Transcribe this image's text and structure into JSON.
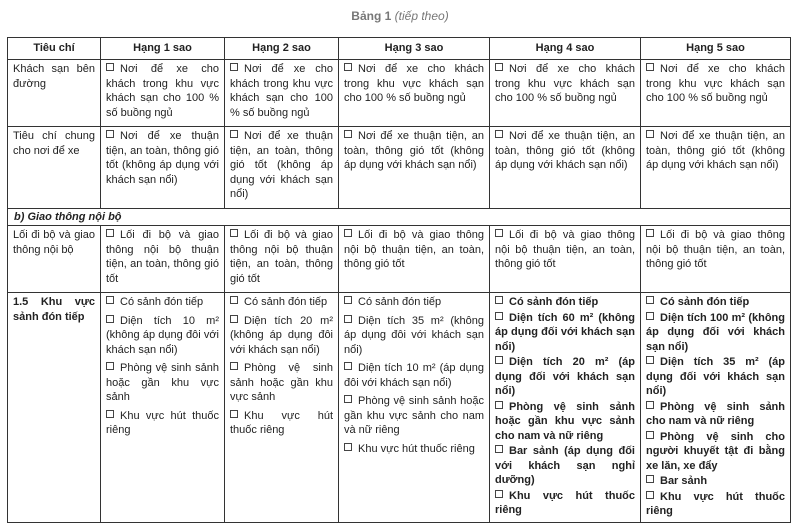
{
  "caption": {
    "title": "Bảng 1",
    "note": "(tiếp theo)"
  },
  "headers": [
    "Tiêu chí",
    "Hạng 1 sao",
    "Hạng 2 sao",
    "Hạng 3 sao",
    "Hạng 4 sao",
    "Hạng 5 sao"
  ],
  "rows": [
    {
      "criterion": "Khách sạn bên đường",
      "cells": [
        [
          "Nơi để xe cho khách trong khu vực khách sạn cho 100 % số buồng ngủ"
        ],
        [
          "Nơi để xe cho khách trong khu vực khách sạn cho 100 % số buồng ngủ"
        ],
        [
          "Nơi để xe cho khách trong khu vực khách sạn cho 100 % số buồng ngủ"
        ],
        [
          "Nơi để xe cho khách trong khu vực khách sạn cho 100 % số buồng ngủ"
        ],
        [
          "Nơi để xe cho khách trong khu vực khách sạn cho 100 % số buồng ngủ"
        ]
      ]
    },
    {
      "criterion": "Tiêu chí chung cho nơi để xe",
      "cells": [
        [
          "Nơi để xe thuận tiện, an toàn, thông gió tốt (không áp dụng với khách sạn nổi)"
        ],
        [
          "Nơi để xe thuận tiện, an toàn, thông gió tốt (không áp dụng với khách sạn nổi)"
        ],
        [
          "Nơi để xe thuận tiện, an toàn, thông gió tốt (không áp dụng với khách sạn nổi)"
        ],
        [
          "Nơi để xe thuận tiện, an toàn, thông gió tốt (không áp dụng với khách sạn nổi)"
        ],
        [
          "Nơi để xe thuận tiện, an toàn, thông gió tốt (không áp dụng với khách sạn nổi)"
        ]
      ]
    }
  ],
  "section": "b) Giao thông nội bộ",
  "rows2": [
    {
      "criterion": "Lối đi bộ và giao thông nội bộ",
      "cells": [
        [
          "Lối đi bộ và giao thông nội bộ thuận tiện, an toàn, thông gió tốt"
        ],
        [
          "Lối đi bộ và giao thông nội bộ thuận tiện, an toàn, thông gió tốt"
        ],
        [
          "Lối đi bộ và giao thông nội bộ thuận tiện, an toàn, thông gió tốt"
        ],
        [
          "Lối đi bộ và giao thông nội bộ thuận tiện, an toàn, thông gió tốt"
        ],
        [
          "Lối đi bộ và giao thông nội bộ thuận tiện, an toàn, thông gió tốt"
        ]
      ]
    },
    {
      "criterion": "1.5 Khu vực sảnh đón tiếp",
      "cells": [
        [
          "Có sảnh đón tiếp",
          "Diện tích 10 m² (không áp dụng đôi với khách sạn nổi)",
          "Phòng vệ sinh sảnh hoặc gần khu vực sảnh",
          "Khu vực hút thuốc riêng"
        ],
        [
          "Có sảnh đón tiếp",
          "Diện tích 20 m² (không áp dụng đôi với khách sạn nổi)",
          "Phòng vệ sinh sảnh hoặc gần khu vực sảnh",
          "Khu vực hút thuốc riêng"
        ],
        [
          "Có sảnh đón tiếp",
          "Diện tích 35 m² (không áp dụng đôi với khách sạn nổi)",
          "Diện tích 10 m² (áp dụng đôi với khách sạn nổi)",
          "Phòng vệ sinh sảnh hoặc gần khu vực sảnh cho nam và nữ riêng",
          "Khu vực hút thuốc riêng"
        ],
        [
          "Có sảnh đón tiếp",
          "Diện tích 60 m² (không áp dụng đối với khách sạn nổi)",
          "Diện tích 20 m² (áp dụng đối với khách sạn nổi)",
          "Phòng vệ sinh sảnh hoặc gần khu vực sảnh cho nam và nữ riêng",
          "Bar sảnh (áp dụng đối với khách sạn nghỉ dưỡng)",
          "Khu vực hút thuốc riêng"
        ],
        [
          "Có sảnh đón tiếp",
          "Diện tích 100 m² (không áp dụng đối với khách sạn nổi)",
          "Diện tích 35 m² (áp dụng đối với khách sạn nổi)",
          "Phòng vệ sinh sảnh cho nam và nữ riêng",
          "Phòng vệ sinh cho người khuyết tật đi bằng xe lăn, xe đẩy",
          "Bar sảnh",
          "Khu vực hút thuốc riêng"
        ]
      ]
    }
  ]
}
